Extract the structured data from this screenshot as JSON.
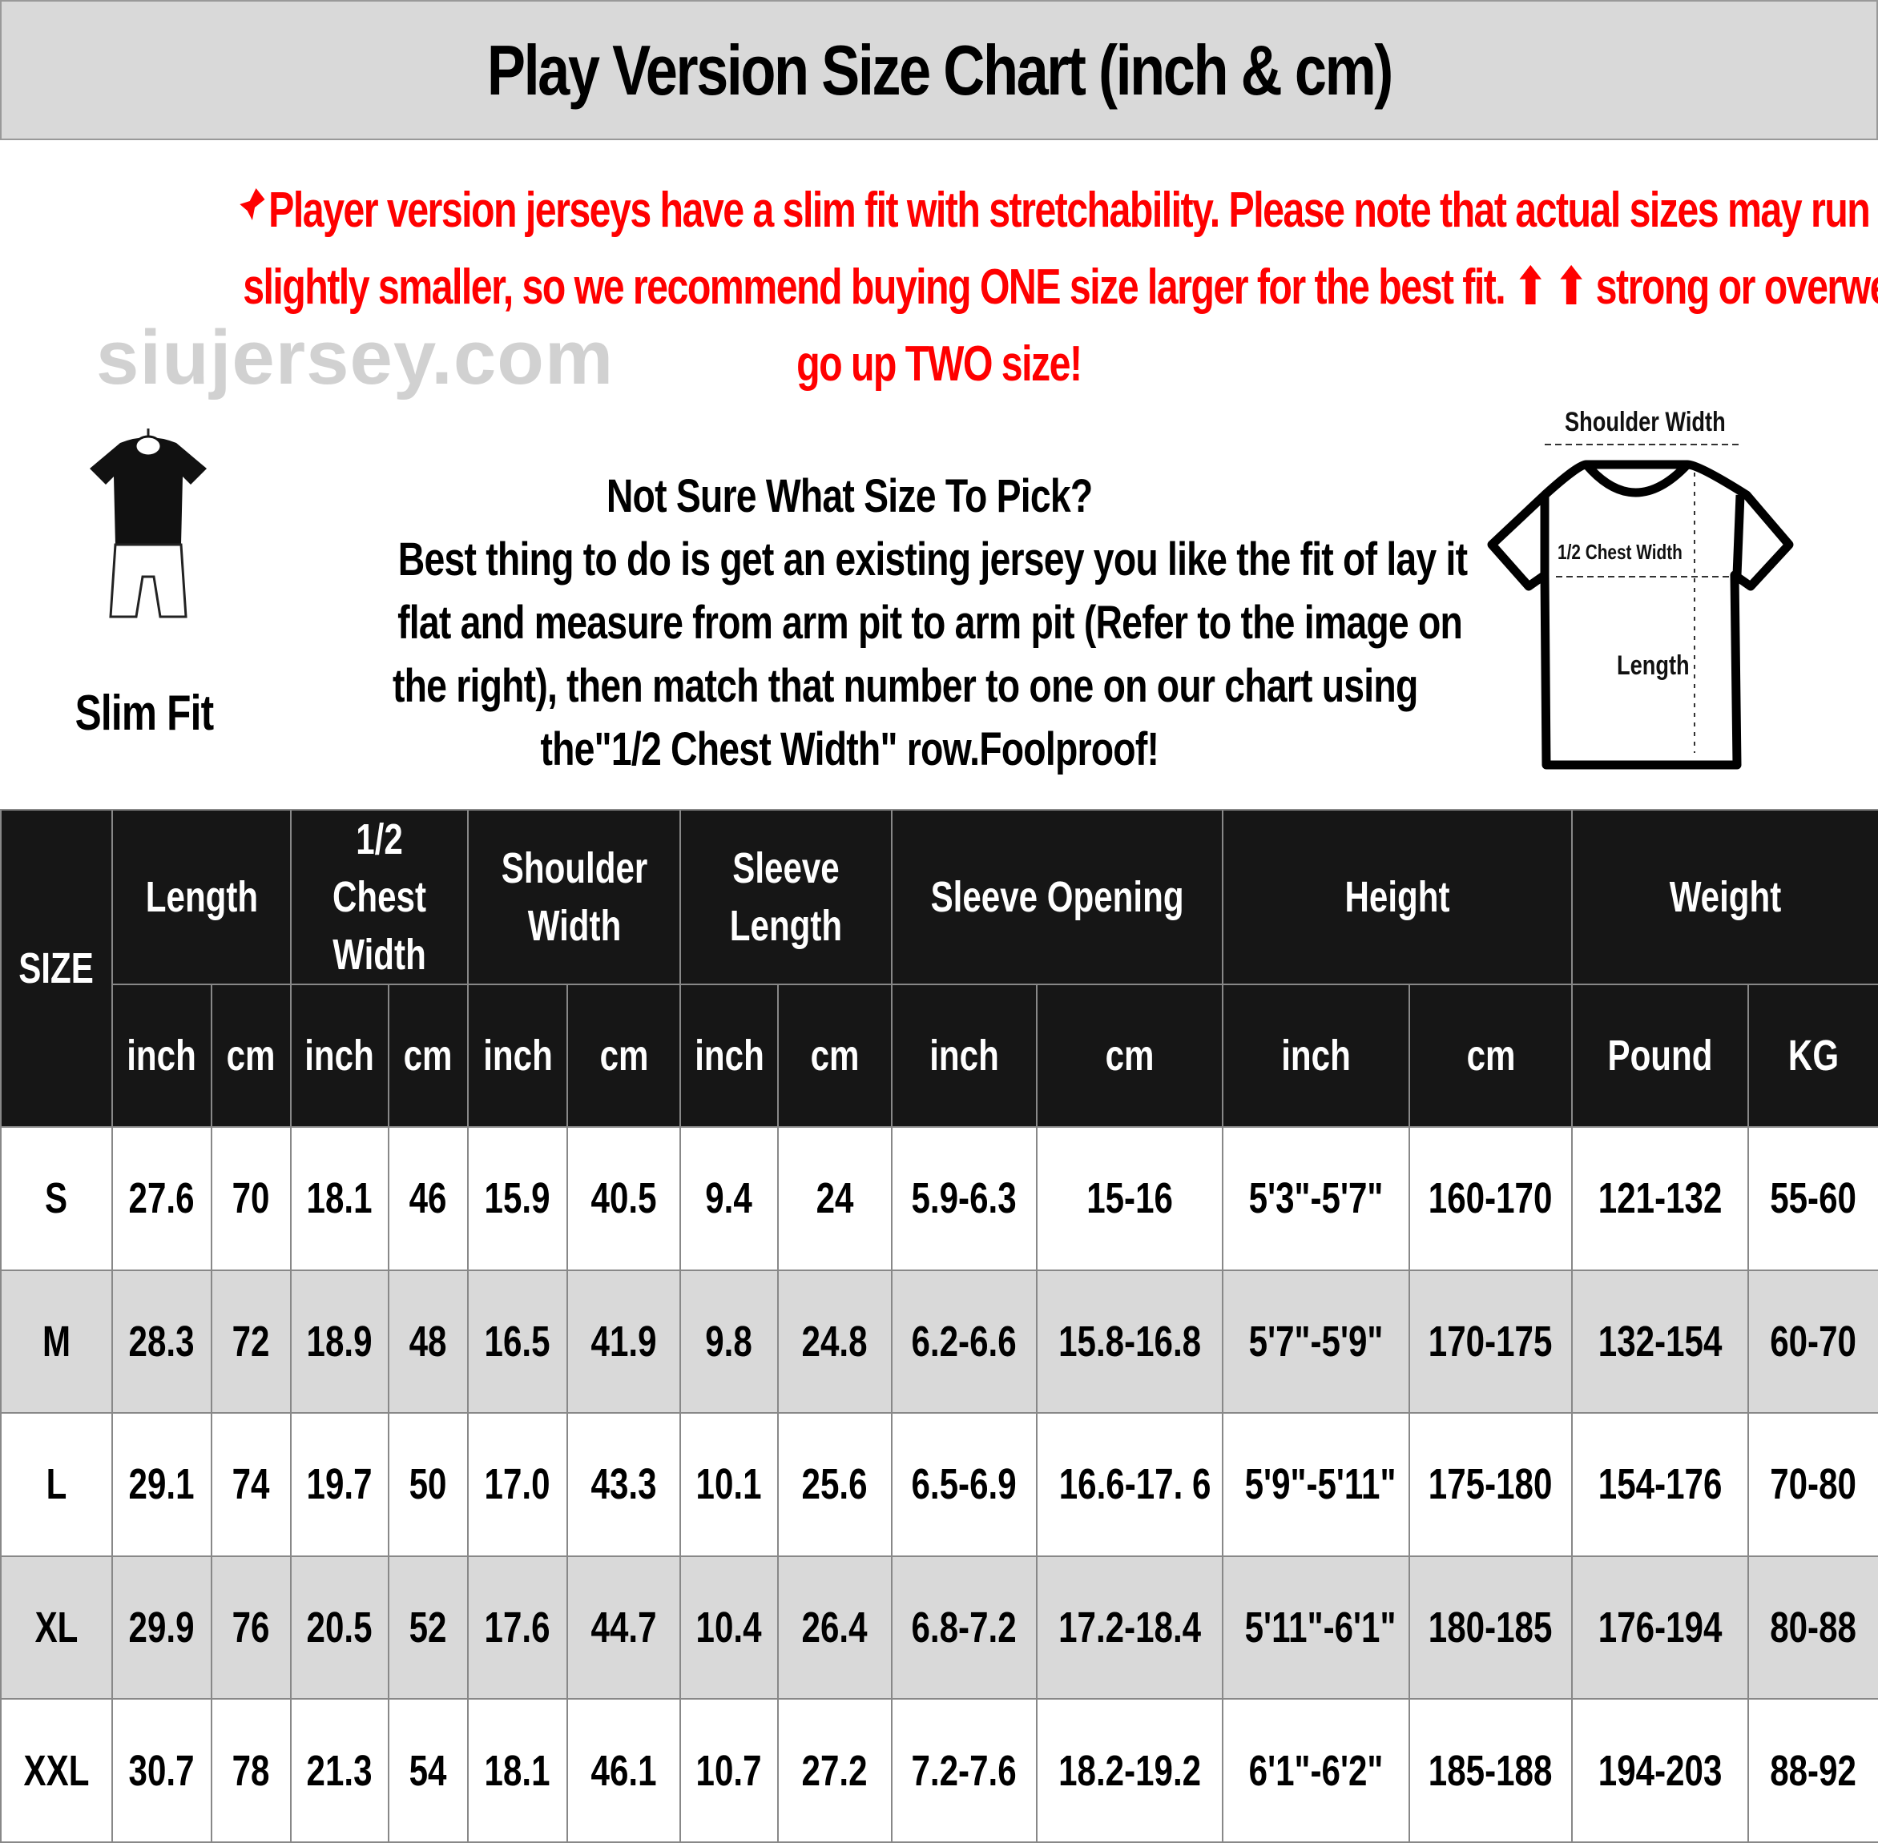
{
  "title": "Play Version Size Chart (inch & cm)",
  "notice": {
    "icon": "pushpin-icon",
    "color": "#ff0000",
    "lines": [
      "Player version jerseys have a slim fit with stretchability. Please note that actual sizes may run",
      "slightly smaller, so we recommend buying ONE size larger for the best fit. ⬆ ⬆ strong or overweight,",
      "go up TWO size!"
    ]
  },
  "fit": {
    "label": "Slim Fit",
    "icon": "mannequin-icon"
  },
  "advice": {
    "lines": [
      "Not Sure What Size To Pick?",
      "Best thing to do is get an existing jersey you like the fit of lay it",
      "flat and measure from arm pit to arm pit (Refer to the image on",
      "the right), then match that number to one on our chart using",
      "the\"1/2 Chest Width\" row.Foolproof!"
    ]
  },
  "diagram": {
    "icon": "tshirt-icon",
    "shoulder_width": "Shoulder Width",
    "chest_width": "1/2 Chest Width",
    "length": "Length"
  },
  "watermark": "siujersey.com",
  "table": {
    "size_header": "SIZE",
    "groups": [
      "Length",
      "1/2 Chest\nWidth",
      "Shoulder\nWidth",
      "Sleeve\nLength",
      "Sleeve Opening",
      "Height",
      "Weight"
    ],
    "units": [
      "inch",
      "cm",
      "inch",
      "cm",
      "inch",
      "cm",
      "inch",
      "cm",
      "inch",
      "cm",
      "inch",
      "cm",
      "Pound",
      "KG"
    ],
    "rows": [
      [
        "S",
        "27.6",
        "70",
        "18.1",
        "46",
        "15.9",
        "40.5",
        "9.4",
        "24",
        "5.9-6.3",
        "15-16",
        "5'3\"-5'7\"",
        "160-170",
        "121-132",
        "55-60"
      ],
      [
        "M",
        "28.3",
        "72",
        "18.9",
        "48",
        "16.5",
        "41.9",
        "9.8",
        "24.8",
        "6.2-6.6",
        "15.8-16.8",
        "5'7\"-5'9\"",
        "170-175",
        "132-154",
        "60-70"
      ],
      [
        "L",
        "29.1",
        "74",
        "19.7",
        "50",
        "17.0",
        "43.3",
        "10.1",
        "25.6",
        "6.5-6.9",
        "16.6-17. 6",
        "5'9\"-5'11\"",
        "175-180",
        "154-176",
        "70-80"
      ],
      [
        "XL",
        "29.9",
        "76",
        "20.5",
        "52",
        "17.6",
        "44.7",
        "10.4",
        "26.4",
        "6.8-7.2",
        "17.2-18.4",
        "5'11\"-6'1\"",
        "180-185",
        "176-194",
        "80-88"
      ],
      [
        "XXL",
        "30.7",
        "78",
        "21.3",
        "54",
        "18.1",
        "46.1",
        "10.7",
        "27.2",
        "7.2-7.6",
        "18.2-19.2",
        "6'1\"-6'2\"",
        "185-188",
        "194-203",
        "88-92"
      ]
    ]
  }
}
